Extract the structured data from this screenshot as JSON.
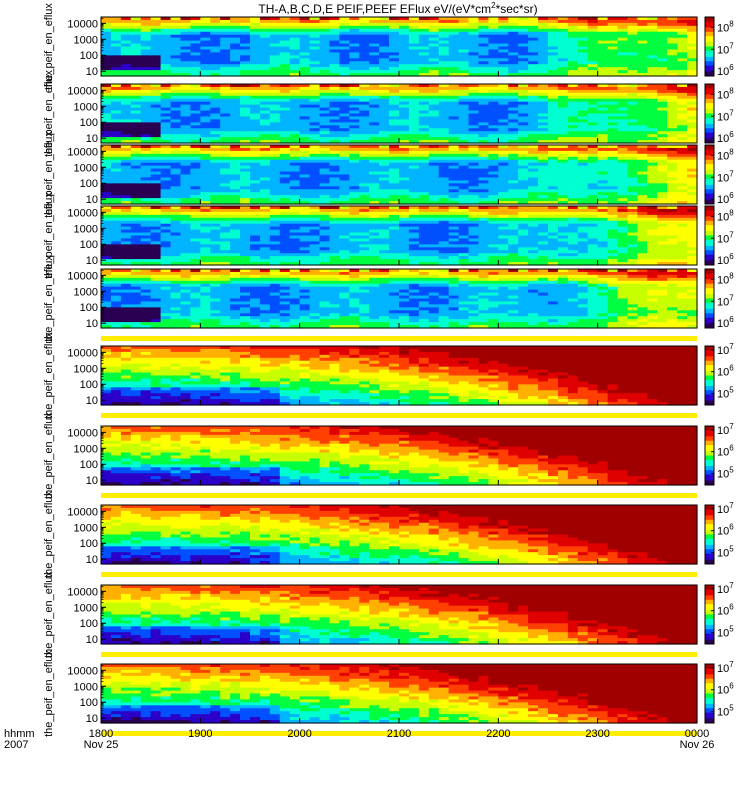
{
  "title": "TH-A,B,C,D,E PEIF,PEEF EFlux eV/(eV*cm^2*sec*sr)",
  "colors": {
    "background": "#ffffff",
    "separator": "#ffee00",
    "colormap": [
      "#2a0052",
      "#2b00c8",
      "#0050ff",
      "#00b4ff",
      "#00ffd0",
      "#00ff40",
      "#c8ff00",
      "#ffff00",
      "#ffb000",
      "#ff4000",
      "#e00000",
      "#a00000"
    ]
  },
  "x_axis": {
    "ticks": [
      "1800",
      "1900",
      "2000",
      "2100",
      "2200",
      "2300",
      "0000"
    ],
    "sublabels": {
      "first": "Nov 25",
      "last": "Nov 26"
    },
    "corner_labels": [
      "hhmm",
      "2007"
    ],
    "range": [
      "2007-11-25 18:00",
      "2007-11-26 00:00"
    ]
  },
  "chart_data": [
    {
      "type": "heatmap",
      "kind": "ion",
      "ylabel": "the_peif_en_eflux",
      "yscale": "log",
      "ylim": [
        5,
        25000
      ],
      "yticks": [
        "10000",
        "1000",
        "100",
        "10"
      ],
      "zscale": "log",
      "zlim": [
        600000,
        300000000
      ],
      "zticks": [
        "10^8",
        "10^7",
        "10^6"
      ]
    },
    {
      "type": "heatmap",
      "kind": "ion",
      "ylabel": "the_peif_en_eflux",
      "yscale": "log",
      "ylim": [
        5,
        25000
      ],
      "yticks": [
        "10000",
        "1000",
        "100",
        "10"
      ],
      "zscale": "log",
      "zlim": [
        600000,
        300000000
      ],
      "zticks": [
        "10^8",
        "10^7",
        "10^6"
      ]
    },
    {
      "type": "heatmap",
      "kind": "ion",
      "ylabel": "the_peif_en_eflux",
      "yscale": "log",
      "ylim": [
        5,
        25000
      ],
      "yticks": [
        "10000",
        "1000",
        "100",
        "10"
      ],
      "zscale": "log",
      "zlim": [
        600000,
        300000000
      ],
      "zticks": [
        "10^8",
        "10^7",
        "10^6"
      ]
    },
    {
      "type": "heatmap",
      "kind": "ion",
      "ylabel": "the_peif_en_eflux",
      "yscale": "log",
      "ylim": [
        5,
        25000
      ],
      "yticks": [
        "10000",
        "1000",
        "100",
        "10"
      ],
      "zscale": "log",
      "zlim": [
        600000,
        300000000
      ],
      "zticks": [
        "10^8",
        "10^7",
        "10^6"
      ]
    },
    {
      "type": "heatmap",
      "kind": "ion",
      "ylabel": "the_peif_en_eflux",
      "yscale": "log",
      "ylim": [
        5,
        25000
      ],
      "yticks": [
        "10000",
        "1000",
        "100",
        "10"
      ],
      "zscale": "log",
      "zlim": [
        600000,
        300000000
      ],
      "zticks": [
        "10^8",
        "10^7",
        "10^6"
      ]
    },
    {
      "type": "heatmap",
      "kind": "electron",
      "ylabel": "the_peif_en_eflux",
      "yscale": "log",
      "ylim": [
        5,
        25000
      ],
      "yticks": [
        "10000",
        "1000",
        "100",
        "10"
      ],
      "zscale": "log",
      "zlim": [
        30000,
        15000000
      ],
      "zticks": [
        "10^7",
        "10^6",
        "10^5"
      ]
    },
    {
      "type": "heatmap",
      "kind": "electron",
      "ylabel": "the_peif_en_eflux",
      "yscale": "log",
      "ylim": [
        5,
        25000
      ],
      "yticks": [
        "10000",
        "1000",
        "100",
        "10"
      ],
      "zscale": "log",
      "zlim": [
        30000,
        15000000
      ],
      "zticks": [
        "10^7",
        "10^6",
        "10^5"
      ]
    },
    {
      "type": "heatmap",
      "kind": "electron",
      "ylabel": "the_peif_en_eflux",
      "yscale": "log",
      "ylim": [
        5,
        25000
      ],
      "yticks": [
        "10000",
        "1000",
        "100",
        "10"
      ],
      "zscale": "log",
      "zlim": [
        30000,
        15000000
      ],
      "zticks": [
        "10^7",
        "10^6",
        "10^5"
      ]
    },
    {
      "type": "heatmap",
      "kind": "electron",
      "ylabel": "the_peif_en_eflux",
      "yscale": "log",
      "ylim": [
        5,
        25000
      ],
      "yticks": [
        "10000",
        "1000",
        "100",
        "10"
      ],
      "zscale": "log",
      "zlim": [
        30000,
        15000000
      ],
      "zticks": [
        "10^7",
        "10^6",
        "10^5"
      ]
    },
    {
      "type": "heatmap",
      "kind": "electron",
      "ylabel": "the_peif_en_eflux",
      "yscale": "log",
      "ylim": [
        5,
        25000
      ],
      "yticks": [
        "10000",
        "1000",
        "100",
        "10"
      ],
      "zscale": "log",
      "zlim": [
        30000,
        15000000
      ],
      "zticks": [
        "10^7",
        "10^6",
        "10^5"
      ]
    }
  ]
}
